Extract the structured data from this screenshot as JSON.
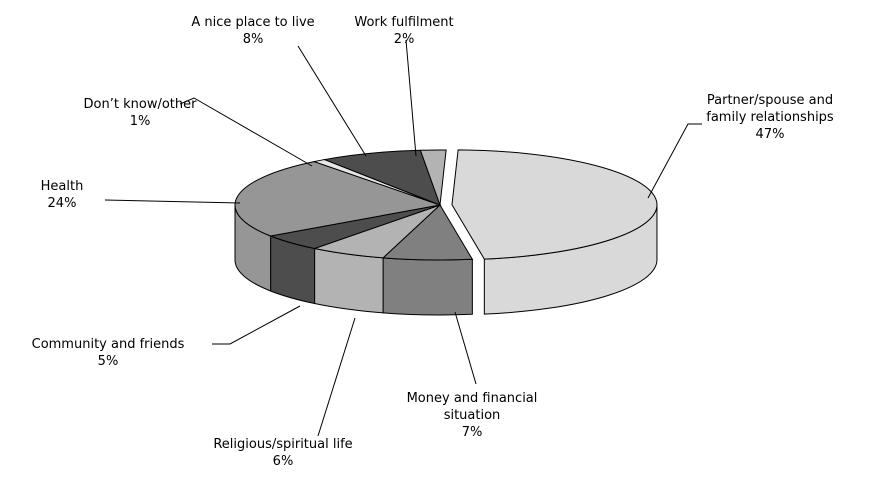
{
  "chart_data": {
    "type": "pie",
    "categories": [
      "Partner/spouse and family relationships",
      "Money and financial situation",
      "Religious/spiritual life",
      "Community and friends",
      "Health",
      "Don’t know/other",
      "A nice place to live",
      "Work fulfilment"
    ],
    "values": [
      47,
      7,
      6,
      5,
      24,
      1,
      8,
      2
    ],
    "value_labels": [
      "47%",
      "7%",
      "6%",
      "5%",
      "24%",
      "1%",
      "8%",
      "2%"
    ],
    "colors": [
      "#d9d9d9",
      "#808080",
      "#b3b3b3",
      "#4d4d4d",
      "#969696",
      "#e6e6e6",
      "#4d4d4d",
      "#b3b3b3"
    ]
  }
}
